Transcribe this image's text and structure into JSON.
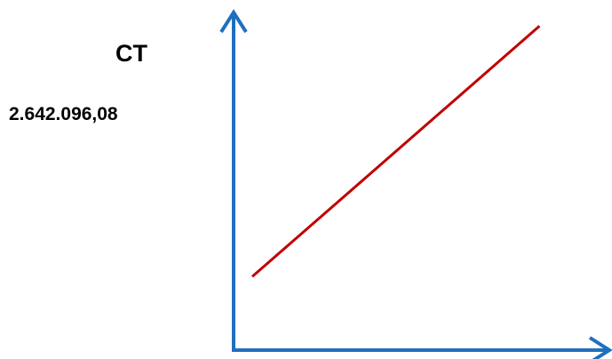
{
  "chart_data": {
    "type": "line",
    "title": "",
    "ylabel": "CT",
    "xlabel": "",
    "annotations": [
      {
        "text": "2.642.096,08"
      }
    ],
    "series": [
      {
        "values": [
          0.22,
          0.97
        ]
      }
    ],
    "x": [
      0.05,
      0.82
    ],
    "xlim": [
      0,
      1
    ],
    "ylim": [
      0,
      1
    ],
    "grid": false,
    "legend": "none",
    "colors": {
      "axis": "#1f6fbf",
      "line": "#c00000",
      "text": "#000000"
    }
  }
}
